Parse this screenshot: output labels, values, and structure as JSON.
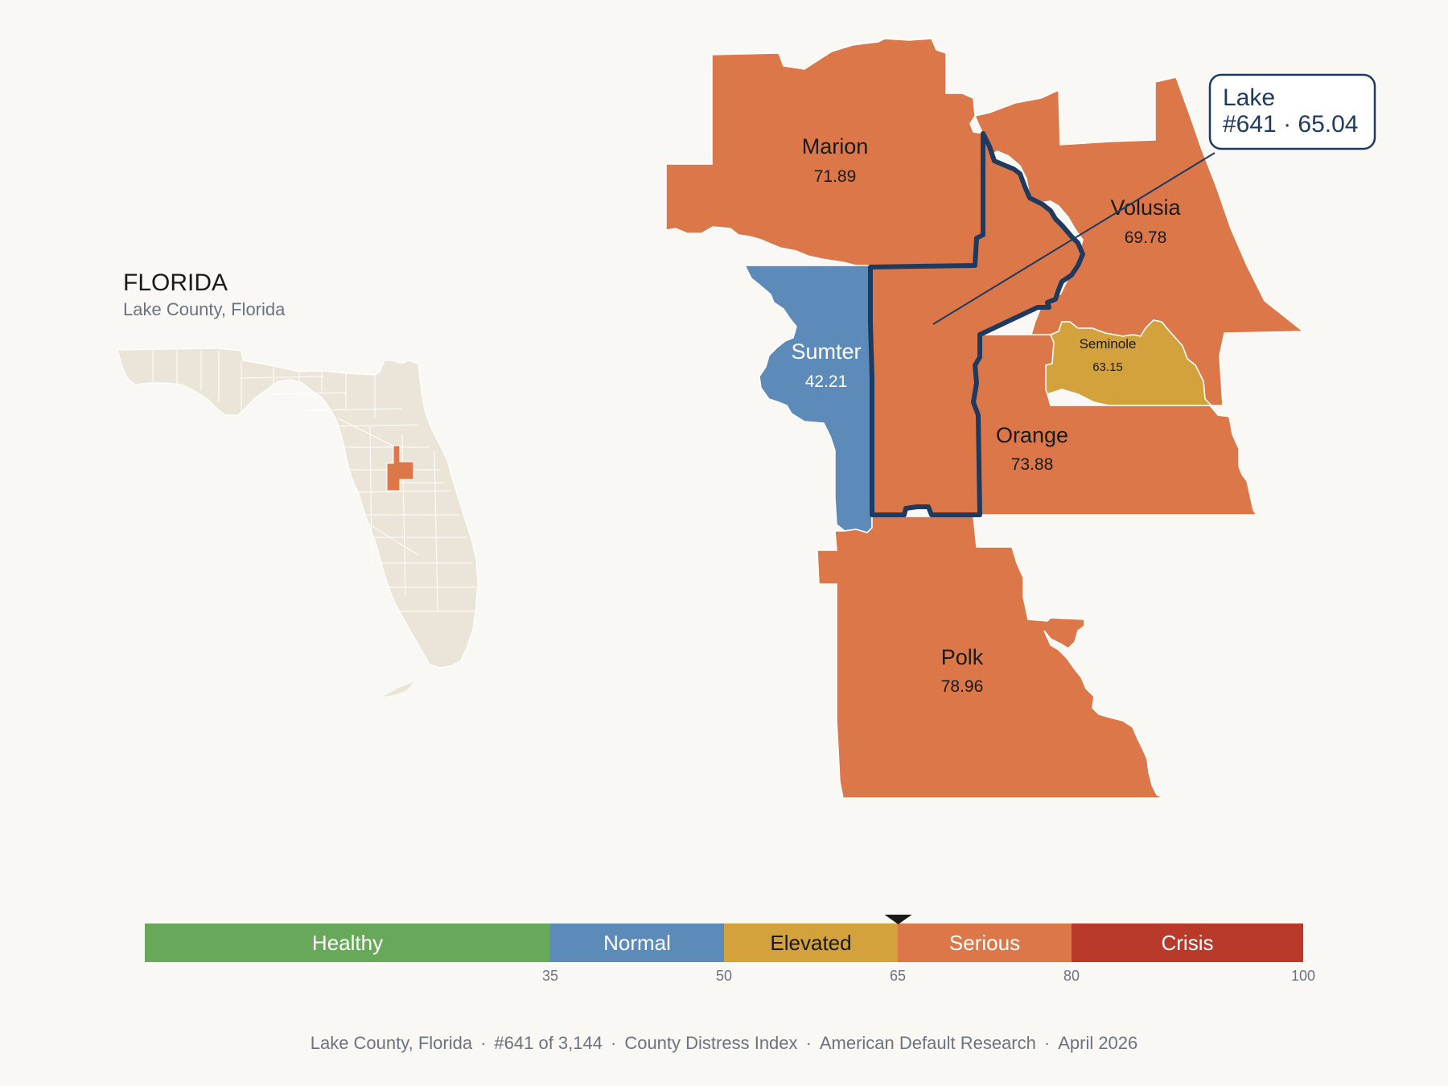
{
  "colors": {
    "background": "#faf8f4",
    "serious": "#dc774a",
    "normal": "#5c8ab9",
    "elevated": "#d4a23c",
    "healthy": "#67a85a",
    "crisis": "#b93a2b",
    "state_fill": "#ebe4d8",
    "highlight": "#1f3a5f"
  },
  "inset": {
    "title": "FLORIDA",
    "subtitle": "Lake County, Florida"
  },
  "counties": {
    "marion": {
      "name": "Marion",
      "value": "71.89"
    },
    "volusia": {
      "name": "Volusia",
      "value": "69.78"
    },
    "sumter": {
      "name": "Sumter",
      "value": "42.21"
    },
    "seminole": {
      "name": "Seminole",
      "value": "63.15"
    },
    "orange": {
      "name": "Orange",
      "value": "73.88"
    },
    "polk": {
      "name": "Polk",
      "value": "78.96"
    }
  },
  "callout": {
    "county": "Lake",
    "detail": "#641 · 65.04"
  },
  "scale": {
    "min": 0,
    "max": 100,
    "marker_value": 65.04,
    "segments": [
      {
        "label": "Healthy",
        "from": 0,
        "to": 35,
        "color": "#67a85a",
        "text_color": "#ffffff"
      },
      {
        "label": "Normal",
        "from": 35,
        "to": 50,
        "color": "#5c8ab9",
        "text_color": "#ffffff"
      },
      {
        "label": "Elevated",
        "from": 50,
        "to": 65,
        "color": "#d4a23c",
        "text_color": "#1a1a1a"
      },
      {
        "label": "Serious",
        "from": 65,
        "to": 80,
        "color": "#dc774a",
        "text_color": "#ffffff"
      },
      {
        "label": "Crisis",
        "from": 80,
        "to": 100,
        "color": "#b93a2b",
        "text_color": "#ffffff"
      }
    ],
    "ticks": [
      "35",
      "50",
      "65",
      "80",
      "100"
    ]
  },
  "footer": {
    "county": "Lake County, Florida",
    "rank": "#641 of 3,144",
    "index": "County Distress Index",
    "source": "American Default Research",
    "date": "April 2026",
    "separator": "·"
  }
}
